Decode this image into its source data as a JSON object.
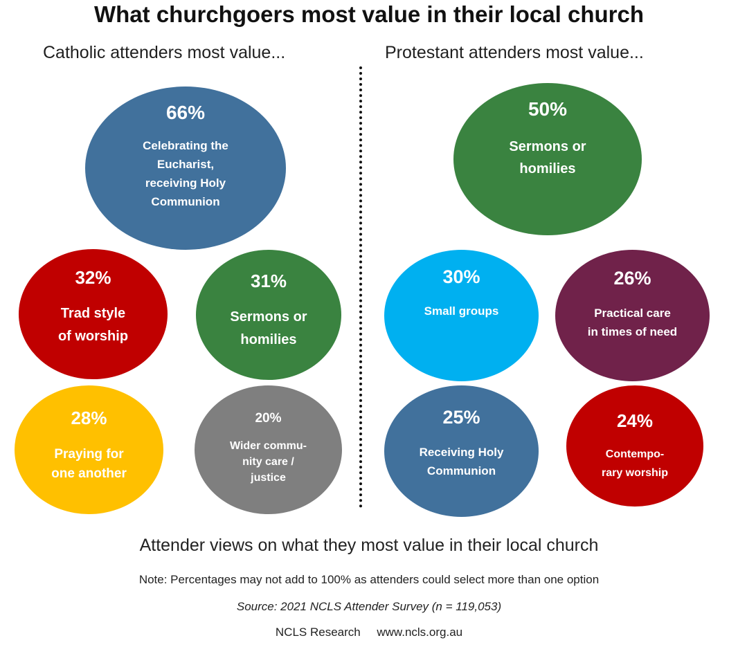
{
  "title": "What churchgoers most value in their local church",
  "groups": {
    "left": "Catholic attenders most value...",
    "right": "Protestant attenders most value..."
  },
  "footer": {
    "main": "Attender views on what they most value in their local church",
    "note": "Note: Percentages may not add to 100% as attenders could select more than one option",
    "source": "Source: 2021 NCLS Attender Survey (n = 119,053)",
    "credit": "NCLS Research     www.ncls.org.au"
  },
  "chart_data": [
    {
      "type": "bubble",
      "title": "Catholic attenders most value...",
      "items": [
        {
          "pct": "66%",
          "value": 66,
          "label": "Celebrating the\nEucharist,\nreceiving Holy\nCommunion",
          "color": "#41719C"
        },
        {
          "pct": "32%",
          "value": 32,
          "label": "Trad style\nof worship",
          "color": "#C00000"
        },
        {
          "pct": "31%",
          "value": 31,
          "label": "Sermons or\nhomilies",
          "color": "#3A8340"
        },
        {
          "pct": "28%",
          "value": 28,
          "label": "Praying for\none another",
          "color": "#FFC000"
        },
        {
          "pct": "20%",
          "value": 20,
          "label": "Wider commu-\nnity care /\njustice",
          "color": "#7F7F7F"
        }
      ]
    },
    {
      "type": "bubble",
      "title": "Protestant attenders most value...",
      "items": [
        {
          "pct": "50%",
          "value": 50,
          "label": "Sermons or\nhomilies",
          "color": "#3A8340"
        },
        {
          "pct": "30%",
          "value": 30,
          "label": "Small groups",
          "color": "#00B0F0"
        },
        {
          "pct": "26%",
          "value": 26,
          "label": "Practical care\nin times of need",
          "color": "#70224A"
        },
        {
          "pct": "25%",
          "value": 25,
          "label": "Receiving Holy\nCommunion",
          "color": "#41719C"
        },
        {
          "pct": "24%",
          "value": 24,
          "label": "Contempo-\nrary worship",
          "color": "#C00000"
        }
      ]
    }
  ]
}
